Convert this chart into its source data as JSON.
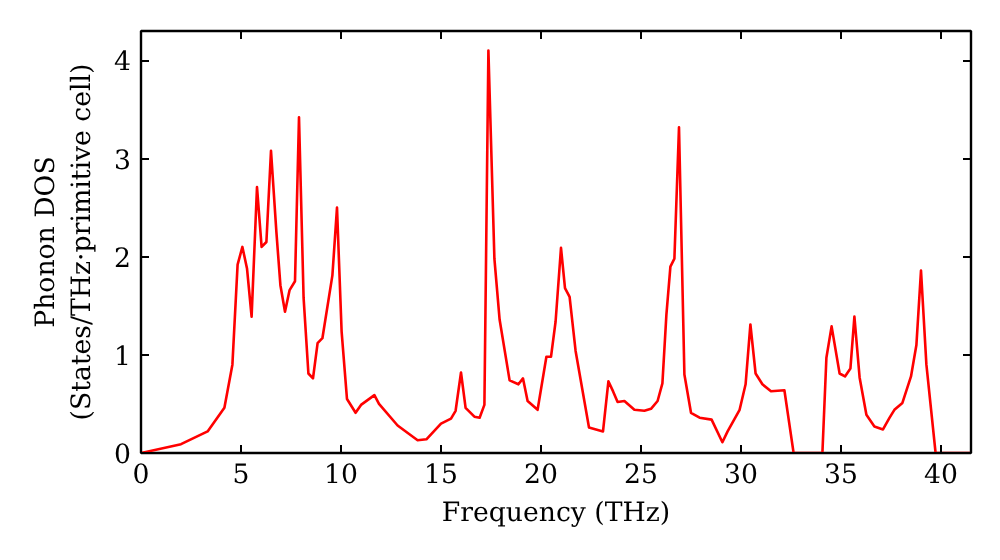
{
  "chart_data": {
    "type": "line",
    "xlabel": "Frequency (THz)",
    "ylabel": "Phonon DOS\n(States/THz·primitive cell)",
    "x": [
      0,
      2,
      3.33,
      4.17,
      4.57,
      4.83,
      5.07,
      5.3,
      5.53,
      5.8,
      6.03,
      6.27,
      6.5,
      6.77,
      6.97,
      7.2,
      7.43,
      7.7,
      7.9,
      8.13,
      8.37,
      8.6,
      8.83,
      9.07,
      9.57,
      9.8,
      10.03,
      10.3,
      10.73,
      11,
      11.67,
      11.9,
      12.83,
      13.83,
      14.27,
      15,
      15.5,
      15.73,
      16,
      16.23,
      16.67,
      16.93,
      17.17,
      17.37,
      17.67,
      17.93,
      18.43,
      18.87,
      19.1,
      19.33,
      19.83,
      20.27,
      20.5,
      20.73,
      21,
      21.2,
      21.43,
      21.73,
      22.4,
      23.1,
      23.37,
      23.6,
      23.83,
      24.17,
      24.67,
      25.17,
      25.5,
      25.83,
      26.07,
      26.27,
      26.47,
      26.67,
      26.9,
      27.17,
      27.5,
      27.93,
      28.53,
      29.07,
      29.33,
      29.93,
      30.23,
      30.47,
      30.73,
      31.07,
      31.5,
      32.17,
      32.63,
      34.07,
      34.27,
      34.53,
      34.93,
      35.2,
      35.47,
      35.67,
      35.93,
      36.27,
      36.67,
      37.1,
      37.43,
      37.67,
      38.07,
      38.5,
      38.77,
      39,
      39.27,
      39.73,
      41.5
    ],
    "series": [
      {
        "color": "#ff0000",
        "values": [
          0,
          0.09,
          0.22,
          0.46,
          0.9,
          1.92,
          2.1,
          1.88,
          1.39,
          2.71,
          2.1,
          2.15,
          3.08,
          2.25,
          1.71,
          1.44,
          1.66,
          1.75,
          3.42,
          1.58,
          0.81,
          0.76,
          1.12,
          1.17,
          1.81,
          2.5,
          1.24,
          0.55,
          0.41,
          0.49,
          0.59,
          0.5,
          0.28,
          0.13,
          0.14,
          0.3,
          0.35,
          0.43,
          0.82,
          0.46,
          0.37,
          0.36,
          0.49,
          4.1,
          1.98,
          1.36,
          0.74,
          0.7,
          0.76,
          0.53,
          0.44,
          0.98,
          0.98,
          1.34,
          2.09,
          1.68,
          1.59,
          1.04,
          0.26,
          0.22,
          0.73,
          0.63,
          0.52,
          0.53,
          0.44,
          0.43,
          0.45,
          0.53,
          0.71,
          1.41,
          1.9,
          1.98,
          3.32,
          0.8,
          0.41,
          0.36,
          0.34,
          0.11,
          0.22,
          0.44,
          0.7,
          1.31,
          0.81,
          0.7,
          0.63,
          0.64,
          0,
          0,
          0.97,
          1.29,
          0.81,
          0.78,
          0.86,
          1.39,
          0.77,
          0.39,
          0.27,
          0.24,
          0.36,
          0.44,
          0.51,
          0.78,
          1.1,
          1.86,
          0.9,
          0,
          0
        ]
      }
    ],
    "xlim": [
      0,
      41.5
    ],
    "ylim": [
      0,
      4.3
    ],
    "xticks": [
      0,
      5,
      10,
      15,
      20,
      25,
      30,
      35,
      40
    ],
    "yticks": [
      0,
      1,
      2,
      3,
      4
    ],
    "grid": false,
    "marker": "none",
    "line_style": "solid"
  }
}
